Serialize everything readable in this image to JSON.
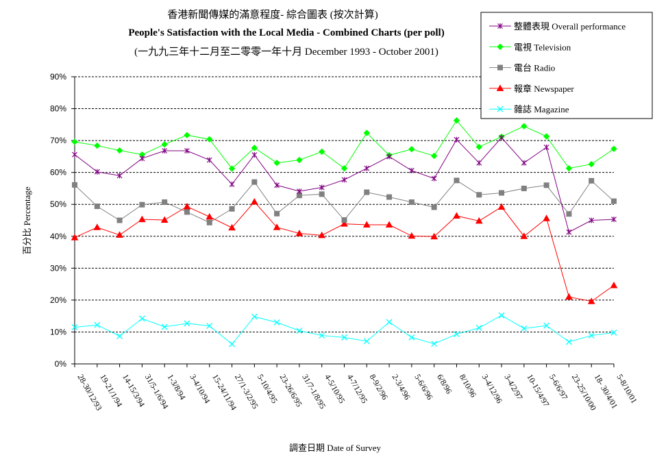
{
  "chart_data": {
    "type": "line",
    "title": "香港新聞傳媒的滿意程度- 綜合圖表 (按次計算)",
    "subtitle": "People's Satisfaction with the Local Media - Combined Charts (per poll)",
    "subtitle2": "(一九九三年十二月至二零零一年十月 December 1993 - October 2001)",
    "xlabel": "調查日期 Date of Survey",
    "ylabel": "百分比 Percentage",
    "ylim": [
      0,
      90
    ],
    "yticks": [
      "0%",
      "10%",
      "20%",
      "30%",
      "40%",
      "50%",
      "60%",
      "70%",
      "80%",
      "90%"
    ],
    "grid": true,
    "legend_position": "top-right",
    "categories": [
      "28-30/12/93",
      "19-21/1/94",
      "14-15/3/94",
      "31/5-1/6/94",
      "1-3/8/94",
      "3-4/10/94",
      "15-24/11/94",
      "27/1-3/2/95",
      "5-10/4/95",
      "23-26/6/95",
      "31/7-1/8/95",
      "4-5/10/95",
      "4-7/12/95",
      "8-9/2/96",
      "2-3/4/96",
      "5-6/6/96",
      "6/8/96",
      "8/10/96",
      "3-4/12/96",
      "3-4/2/97",
      "10-15/4/97",
      "5-6/6/97",
      "23-25/10/00",
      "18- 30/4/01",
      "5-8/10/01"
    ],
    "series": [
      {
        "name": "整體表現 Overall performance",
        "color": "#800080",
        "marker": "star",
        "values": [
          65.6,
          60.2,
          59.0,
          64.4,
          66.8,
          66.8,
          63.9,
          56.3,
          65.5,
          56.0,
          54.1,
          55.3,
          57.7,
          61.3,
          65.0,
          60.6,
          58.1,
          70.3,
          63.0,
          70.9,
          63.0,
          67.9,
          41.3,
          45.0,
          45.3
        ]
      },
      {
        "name": "電視 Television",
        "color": "#00ff00",
        "marker": "diamond",
        "values": [
          69.6,
          68.4,
          66.9,
          65.6,
          68.8,
          71.7,
          70.4,
          61.2,
          67.7,
          63.0,
          63.9,
          66.5,
          61.3,
          72.4,
          65.4,
          67.3,
          65.2,
          76.3,
          68.0,
          71.2,
          74.5,
          71.3,
          61.3,
          62.6,
          67.4
        ]
      },
      {
        "name": "電台 Radio",
        "color": "#808080",
        "marker": "square",
        "values": [
          56.1,
          49.4,
          45.0,
          49.9,
          50.7,
          47.6,
          44.3,
          48.6,
          57.0,
          47.1,
          52.8,
          53.2,
          45.1,
          53.8,
          52.3,
          50.7,
          49.1,
          57.5,
          53.0,
          53.6,
          55.0,
          56.0,
          47.0,
          57.4,
          51.0
        ]
      },
      {
        "name": "報章 Newspaper",
        "color": "#ff0000",
        "marker": "triangle",
        "values": [
          39.6,
          42.8,
          40.4,
          45.3,
          45.1,
          49.3,
          46.1,
          42.7,
          50.8,
          42.8,
          40.9,
          40.3,
          43.9,
          43.6,
          43.6,
          40.1,
          39.9,
          46.4,
          44.8,
          49.2,
          40.0,
          45.6,
          21.0,
          19.6,
          24.6
        ]
      },
      {
        "name": "雜誌 Magazine",
        "color": "#00ffff",
        "marker": "x",
        "values": [
          11.5,
          12.2,
          8.7,
          14.2,
          11.6,
          12.7,
          11.9,
          6.2,
          14.8,
          13.0,
          10.4,
          8.9,
          8.3,
          7.1,
          13.1,
          8.3,
          6.3,
          9.3,
          11.3,
          15.2,
          11.1,
          12.0,
          6.9,
          8.9,
          9.8
        ]
      }
    ]
  }
}
